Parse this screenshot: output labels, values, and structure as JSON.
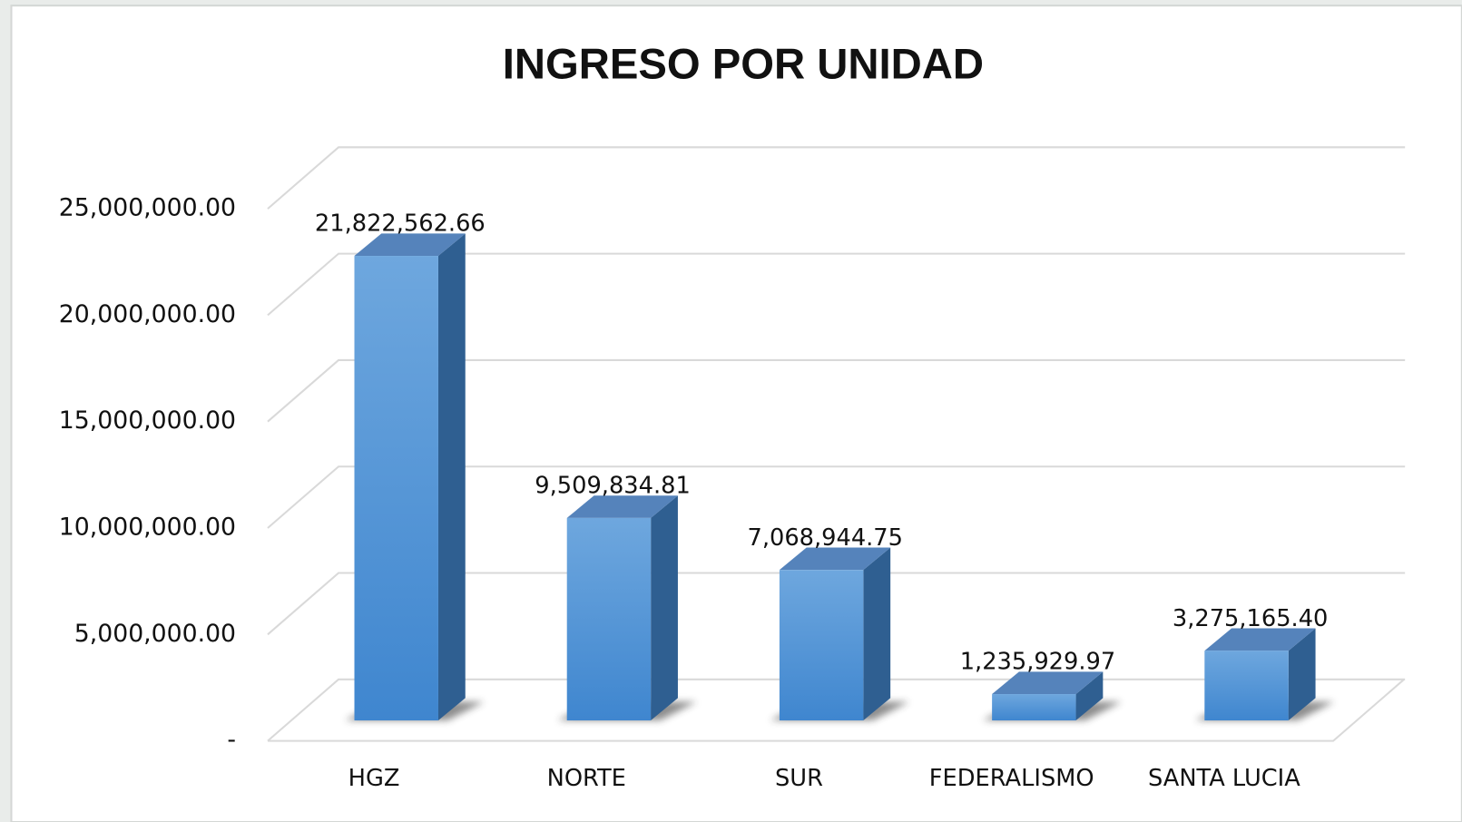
{
  "chart_data": {
    "type": "bar3d",
    "title": "INGRESO POR UNIDAD",
    "categories": [
      "HGZ",
      "NORTE",
      "SUR",
      "FEDERALISMO",
      "SANTA LUCIA"
    ],
    "values": [
      21822562.66,
      9509834.81,
      7068944.75,
      1235929.97,
      3275165.4
    ],
    "value_labels": [
      "21,822,562.66",
      "9,509,834.81",
      "7,068,944.75",
      "1,235,929.97",
      "3,275,165.40"
    ],
    "color": "#4a90d9",
    "ylim": [
      0,
      25000000
    ],
    "yticks": [
      {
        "value": 0,
        "label": "-"
      },
      {
        "value": 5000000,
        "label": "5,000,000.00"
      },
      {
        "value": 10000000,
        "label": "10,000,000.00"
      },
      {
        "value": 15000000,
        "label": "15,000,000.00"
      },
      {
        "value": 20000000,
        "label": "20,000,000.00"
      },
      {
        "value": 25000000,
        "label": "25,000,000.00"
      }
    ],
    "grid": true
  }
}
